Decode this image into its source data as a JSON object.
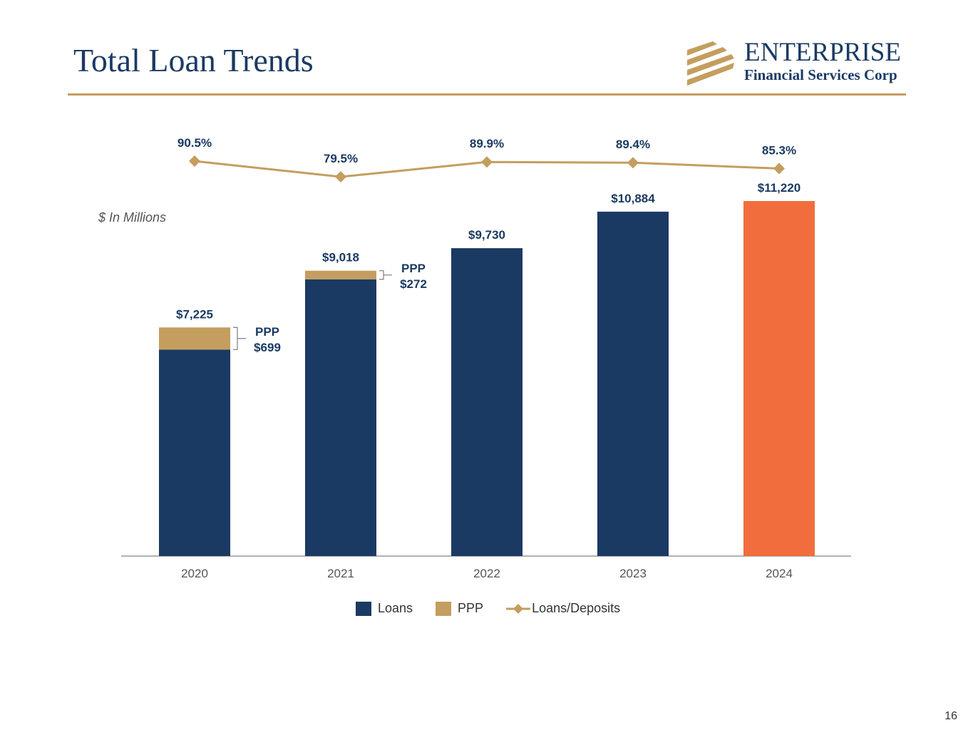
{
  "header": {
    "title": "Total Loan Trends"
  },
  "logo": {
    "word": "ENTERPRISE",
    "sub": "Financial Services Corp"
  },
  "unit_note": "$ In Millions",
  "page_number": "16",
  "colors": {
    "loans": "#1b3a63",
    "ppp": "#c49e5e",
    "highlight": "#f26d3d",
    "ratio_line": "#c49e5e"
  },
  "chart_data": {
    "type": "bar",
    "categories": [
      "2020",
      "2021",
      "2022",
      "2023",
      "2024"
    ],
    "series": [
      {
        "name": "Loans",
        "values": [
          6526,
          8746,
          9730,
          10884,
          11220
        ]
      },
      {
        "name": "PPP",
        "values": [
          699,
          272,
          0,
          0,
          0
        ]
      },
      {
        "name": "Loans/Deposits",
        "type": "line",
        "values": [
          90.5,
          79.5,
          89.9,
          89.4,
          85.3
        ]
      }
    ],
    "total_labels": [
      "$7,225",
      "$9,018",
      "$9,730",
      "$10,884",
      "$11,220"
    ],
    "ratio_labels": [
      "90.5%",
      "79.5%",
      "89.9%",
      "89.4%",
      "85.3%"
    ],
    "ppp_callouts": [
      {
        "category": "2020",
        "label": "PPP",
        "value": "$699"
      },
      {
        "category": "2021",
        "label": "PPP",
        "value": "$272"
      }
    ],
    "highlight_category": "2024",
    "ylim": [
      0,
      11220
    ],
    "legend": [
      "Loans",
      "PPP",
      "Loans/Deposits"
    ],
    "legend_position": "bottom"
  }
}
